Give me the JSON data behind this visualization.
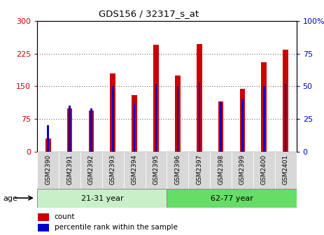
{
  "title": "GDS156 / 32317_s_at",
  "samples": [
    "GSM2390",
    "GSM2391",
    "GSM2392",
    "GSM2393",
    "GSM2394",
    "GSM2395",
    "GSM2396",
    "GSM2397",
    "GSM2398",
    "GSM2399",
    "GSM2400",
    "GSM2401"
  ],
  "counts": [
    30,
    100,
    95,
    180,
    130,
    245,
    175,
    248,
    115,
    145,
    205,
    235
  ],
  "percentiles": [
    20,
    35,
    33,
    50,
    37,
    52,
    50,
    53,
    38,
    40,
    50,
    52
  ],
  "bar_color": "#cc0000",
  "pct_color": "#0000cc",
  "ylim_left": [
    0,
    300
  ],
  "ylim_right": [
    0,
    100
  ],
  "yticks_left": [
    0,
    75,
    150,
    225,
    300
  ],
  "ytick_labels_left": [
    "0",
    "75",
    "150",
    "225",
    "300"
  ],
  "yticks_right": [
    0,
    25,
    50,
    75,
    100
  ],
  "ytick_labels_right": [
    "0",
    "25",
    "50",
    "75",
    "100%"
  ],
  "group1_label": "21-31 year",
  "group2_label": "62-77 year",
  "group1_color": "#c8f0c8",
  "group2_color": "#66dd66",
  "age_label": "age",
  "legend_count": "count",
  "legend_pct": "percentile rank within the sample",
  "red_bar_width": 0.25,
  "blue_bar_width": 0.08,
  "tick_label_color_left": "#cc0000",
  "tick_label_color_right": "#0000cc",
  "xtick_bg": "#d8d8d8"
}
